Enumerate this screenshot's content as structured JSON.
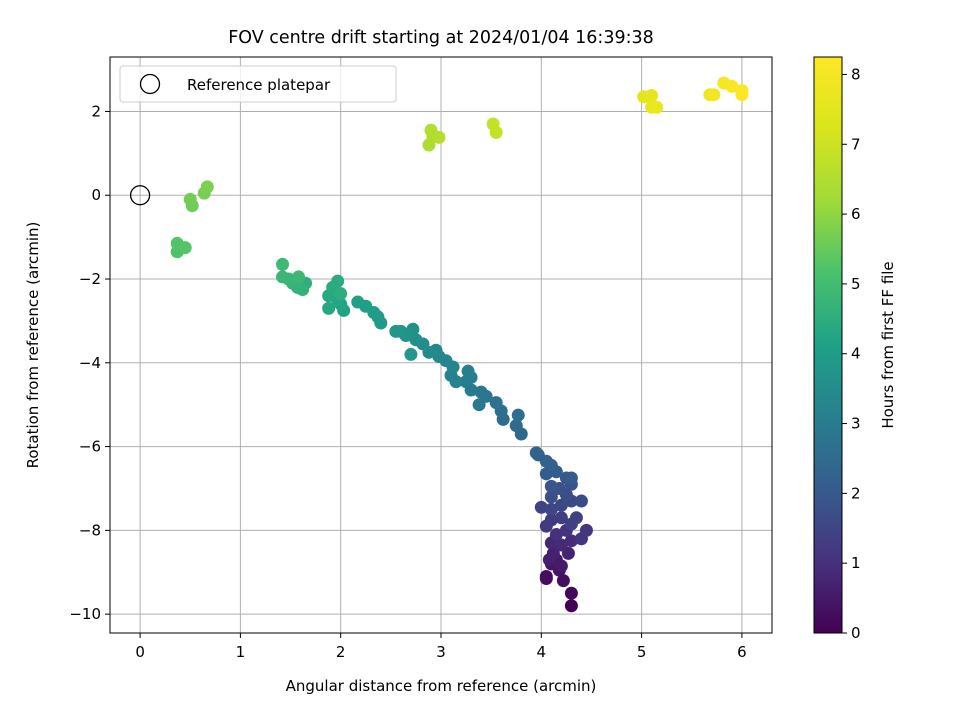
{
  "chart_data": {
    "type": "scatter",
    "title": "FOV centre drift starting at 2024/01/04 16:39:38",
    "xlabel": "Angular distance from reference (arcmin)",
    "ylabel": "Rotation from reference (arcmin)",
    "xlim": [
      -0.3,
      6.3
    ],
    "ylim": [
      -10.45,
      3.3
    ],
    "xticks": [
      0,
      1,
      2,
      3,
      4,
      5,
      6
    ],
    "yticks": [
      -10,
      -8,
      -6,
      -4,
      -2,
      0,
      2
    ],
    "grid": true,
    "legend": {
      "placement": "top-left",
      "entries": [
        "Reference platepar"
      ]
    },
    "reference_point": {
      "x": 0,
      "y": 0
    },
    "colorbar": {
      "label": "Hours from first FF file",
      "range": [
        0,
        8.25
      ],
      "ticks": [
        0,
        1,
        2,
        3,
        4,
        5,
        6,
        7,
        8
      ],
      "colormap": "viridis"
    },
    "points": [
      [
        4.3,
        -9.8,
        0.02
      ],
      [
        4.3,
        -9.5,
        0.1
      ],
      [
        4.05,
        -9.15,
        0.2
      ],
      [
        4.05,
        -9.1,
        0.25
      ],
      [
        4.22,
        -9.2,
        0.3
      ],
      [
        4.18,
        -8.95,
        0.4
      ],
      [
        4.1,
        -8.8,
        0.45
      ],
      [
        4.15,
        -8.7,
        0.5
      ],
      [
        4.2,
        -8.85,
        0.55
      ],
      [
        4.08,
        -8.7,
        0.6
      ],
      [
        4.12,
        -8.55,
        0.7
      ],
      [
        4.27,
        -8.55,
        0.75
      ],
      [
        4.1,
        -8.3,
        0.8
      ],
      [
        4.2,
        -8.35,
        0.85
      ],
      [
        4.3,
        -8.25,
        0.9
      ],
      [
        4.15,
        -8.1,
        1.0
      ],
      [
        4.25,
        -8.0,
        1.05
      ],
      [
        4.4,
        -8.2,
        1.1
      ],
      [
        4.45,
        -8.0,
        1.15
      ],
      [
        4.05,
        -7.9,
        1.2
      ],
      [
        4.1,
        -7.75,
        1.25
      ],
      [
        4.2,
        -7.7,
        1.3
      ],
      [
        4.3,
        -7.85,
        1.35
      ],
      [
        4.35,
        -7.7,
        1.4
      ],
      [
        4.0,
        -7.45,
        1.45
      ],
      [
        4.1,
        -7.5,
        1.5
      ],
      [
        4.2,
        -7.4,
        1.55
      ],
      [
        4.3,
        -7.3,
        1.6
      ],
      [
        4.4,
        -7.3,
        1.65
      ],
      [
        4.25,
        -7.15,
        1.7
      ],
      [
        4.1,
        -7.2,
        1.75
      ],
      [
        4.18,
        -7.0,
        1.8
      ],
      [
        4.3,
        -6.9,
        1.85
      ],
      [
        4.1,
        -6.95,
        1.9
      ],
      [
        4.25,
        -6.75,
        1.95
      ],
      [
        4.3,
        -6.75,
        2.0
      ],
      [
        4.05,
        -6.65,
        2.05
      ],
      [
        4.15,
        -6.6,
        2.1
      ],
      [
        4.1,
        -6.45,
        2.15
      ],
      [
        4.05,
        -6.35,
        2.2
      ],
      [
        3.97,
        -6.2,
        2.25
      ],
      [
        3.95,
        -6.15,
        2.3
      ],
      [
        3.8,
        -5.7,
        2.4
      ],
      [
        3.75,
        -5.5,
        2.5
      ],
      [
        3.62,
        -5.35,
        2.55
      ],
      [
        3.77,
        -5.25,
        2.6
      ],
      [
        3.6,
        -5.15,
        2.65
      ],
      [
        3.55,
        -4.95,
        2.7
      ],
      [
        3.45,
        -4.8,
        2.8
      ],
      [
        3.4,
        -4.7,
        2.85
      ],
      [
        3.38,
        -5.0,
        2.9
      ],
      [
        3.3,
        -4.65,
        2.95
      ],
      [
        3.25,
        -4.45,
        3.0
      ],
      [
        3.3,
        -4.35,
        3.05
      ],
      [
        3.27,
        -4.2,
        3.1
      ],
      [
        3.15,
        -4.45,
        3.15
      ],
      [
        3.1,
        -4.3,
        3.2
      ],
      [
        3.12,
        -4.1,
        3.25
      ],
      [
        3.05,
        -3.95,
        3.3
      ],
      [
        2.98,
        -3.85,
        3.35
      ],
      [
        2.95,
        -3.7,
        3.4
      ],
      [
        2.88,
        -3.75,
        3.45
      ],
      [
        2.82,
        -3.55,
        3.5
      ],
      [
        2.75,
        -3.45,
        3.55
      ],
      [
        2.7,
        -3.3,
        3.6
      ],
      [
        2.72,
        -3.2,
        3.65
      ],
      [
        2.65,
        -3.35,
        3.7
      ],
      [
        2.6,
        -3.25,
        3.75
      ],
      [
        2.55,
        -3.25,
        3.8
      ],
      [
        2.7,
        -3.8,
        3.85
      ],
      [
        2.4,
        -3.05,
        3.9
      ],
      [
        2.37,
        -2.9,
        3.95
      ],
      [
        2.33,
        -2.8,
        4.0
      ],
      [
        2.25,
        -2.65,
        4.05
      ],
      [
        2.17,
        -2.55,
        4.1
      ],
      [
        2.03,
        -2.75,
        4.15
      ],
      [
        2.0,
        -2.6,
        4.2
      ],
      [
        1.97,
        -2.5,
        4.25
      ],
      [
        1.88,
        -2.7,
        4.3
      ],
      [
        1.88,
        -2.4,
        4.35
      ],
      [
        1.92,
        -2.2,
        4.4
      ],
      [
        1.97,
        -2.05,
        4.45
      ],
      [
        2.0,
        -2.35,
        4.5
      ],
      [
        1.65,
        -2.1,
        4.55
      ],
      [
        1.62,
        -2.25,
        4.6
      ],
      [
        1.57,
        -2.2,
        4.65
      ],
      [
        1.52,
        -2.1,
        4.7
      ],
      [
        1.48,
        -2.0,
        4.75
      ],
      [
        1.42,
        -1.95,
        4.8
      ],
      [
        1.58,
        -1.95,
        4.85
      ],
      [
        1.42,
        -1.65,
        4.9
      ],
      [
        0.37,
        -1.35,
        5.2
      ],
      [
        0.37,
        -1.15,
        5.25
      ],
      [
        0.45,
        -1.25,
        5.3
      ],
      [
        0.52,
        -0.25,
        5.6
      ],
      [
        0.5,
        -0.1,
        5.65
      ],
      [
        0.64,
        0.05,
        5.7
      ],
      [
        0.67,
        0.2,
        5.75
      ],
      [
        2.88,
        1.2,
        6.4
      ],
      [
        2.9,
        1.55,
        6.45
      ],
      [
        2.92,
        1.4,
        6.5
      ],
      [
        2.98,
        1.38,
        6.55
      ],
      [
        3.52,
        1.7,
        6.8
      ],
      [
        3.55,
        1.5,
        6.85
      ],
      [
        5.02,
        2.35,
        7.5
      ],
      [
        5.08,
        2.35,
        7.55
      ],
      [
        5.1,
        2.38,
        7.6
      ],
      [
        5.1,
        2.1,
        7.65
      ],
      [
        5.15,
        2.1,
        7.7
      ],
      [
        5.68,
        2.4,
        7.9
      ],
      [
        5.72,
        2.4,
        7.95
      ],
      [
        5.82,
        2.68,
        8.0
      ],
      [
        5.9,
        2.6,
        8.1
      ],
      [
        6.0,
        2.5,
        8.15
      ],
      [
        6.0,
        2.4,
        8.2
      ]
    ]
  }
}
